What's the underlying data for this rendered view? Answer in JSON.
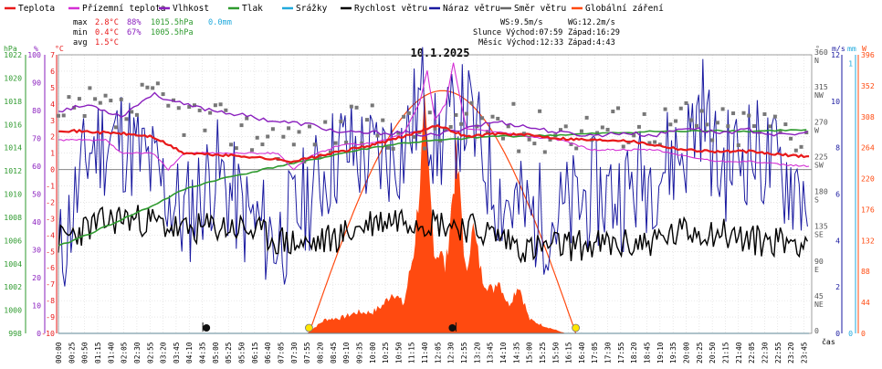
{
  "chart_data": {
    "type": "line",
    "title": "10.1.2025",
    "xlabel": "čas",
    "x_ticks": [
      "00:00",
      "00:25",
      "00:50",
      "01:15",
      "01:40",
      "02:05",
      "02:30",
      "02:55",
      "03:20",
      "03:45",
      "04:10",
      "04:35",
      "05:00",
      "05:25",
      "05:50",
      "06:15",
      "06:40",
      "07:05",
      "07:30",
      "07:55",
      "08:20",
      "08:45",
      "09:10",
      "09:35",
      "10:00",
      "10:25",
      "10:50",
      "11:15",
      "11:40",
      "12:05",
      "12:30",
      "12:55",
      "13:20",
      "13:45",
      "14:10",
      "14:35",
      "15:00",
      "15:25",
      "15:50",
      "16:15",
      "16:40",
      "17:05",
      "17:30",
      "17:55",
      "18:20",
      "18:45",
      "19:10",
      "19:35",
      "20:00",
      "20:25",
      "20:50",
      "21:15",
      "21:40",
      "22:05",
      "22:30",
      "22:55",
      "23:20",
      "23:45"
    ],
    "legend": [
      {
        "name": "Teplota",
        "color": "#e8191a"
      },
      {
        "name": "Přízemní teplota",
        "color": "#d42ed4"
      },
      {
        "name": "Vlhkost",
        "color": "#8a1fbe"
      },
      {
        "name": "Tlak",
        "color": "#2e9a2e"
      },
      {
        "name": "Srážky",
        "color": "#22aadd"
      },
      {
        "name": "Rychlost větru",
        "color": "#000000"
      },
      {
        "name": "Náraz větru",
        "color": "#1a1aa0"
      },
      {
        "name": "Směr větru",
        "color": "#666666"
      },
      {
        "name": "Globální záření",
        "color": "#ff4a10"
      }
    ],
    "stats": {
      "max": {
        "label": "max",
        "temp": "2.8°C",
        "hum": "88%",
        "press": "1015.5hPa",
        "rain": "0.0mm"
      },
      "min": {
        "label": "min",
        "temp": "0.4°C",
        "hum": "67%",
        "press": "1005.5hPa"
      },
      "avg": {
        "label": "avg",
        "temp": "1.5°C"
      }
    },
    "info": {
      "ws": "WS:9.5m/s",
      "wg": "WG:12.2m/s",
      "sun": "Slunce Východ:07:59",
      "sun_set": "Západ:16:29",
      "moon": "Měsíc Východ:12:33",
      "moon_set": "Západ:4:43"
    },
    "axes": {
      "hpa": {
        "label": "hPa",
        "ticks": [
          1022,
          1020,
          1018,
          1016,
          1014,
          1012,
          1010,
          1008,
          1006,
          1004,
          1002,
          1000,
          998
        ]
      },
      "pct": {
        "label": "%",
        "ticks": [
          100,
          90,
          80,
          70,
          60,
          50,
          40,
          30,
          20,
          10,
          0
        ]
      },
      "degc": {
        "label": "°C",
        "ticks": [
          7,
          6,
          5,
          4,
          3,
          2,
          1,
          0,
          -1,
          -2,
          -3,
          -4,
          -5,
          -6,
          -7,
          -8,
          -9,
          -10
        ]
      },
      "wind_dir": {
        "label": "°",
        "ticks": [
          "360",
          "N",
          "315",
          "NW",
          "270",
          "W",
          "225",
          "SW",
          "180",
          "S",
          "135",
          "SE",
          "90",
          "E",
          "45",
          "NE",
          "0"
        ]
      },
      "ms": {
        "label": "m/s",
        "ticks": [
          12,
          10,
          8,
          6,
          4,
          2,
          0
        ]
      },
      "mm": {
        "label": "mm",
        "ticks": [
          1,
          0
        ]
      },
      "wm2": {
        "label": "W",
        "ticks": [
          396,
          352,
          308,
          264,
          220,
          176,
          132,
          88,
          44,
          0
        ]
      }
    },
    "series": [
      {
        "name": "Teplota",
        "unit": "°C",
        "x": [
          "00:00",
          "01:00",
          "02:00",
          "03:00",
          "04:00",
          "05:00",
          "06:00",
          "07:00",
          "07:30",
          "08:00",
          "09:00",
          "10:00",
          "11:00",
          "12:00",
          "12:30",
          "13:00",
          "14:00",
          "15:00",
          "16:00",
          "17:00",
          "18:00",
          "19:00",
          "20:00",
          "21:00",
          "22:00",
          "23:00",
          "23:55"
        ],
        "values": [
          2.4,
          2.3,
          2.2,
          2.0,
          1.0,
          0.9,
          0.8,
          0.6,
          0.5,
          0.7,
          1.1,
          1.5,
          2.0,
          2.7,
          2.4,
          2.0,
          2.2,
          2.1,
          1.9,
          1.8,
          1.8,
          1.5,
          1.2,
          1.1,
          1.1,
          0.9,
          0.8
        ]
      },
      {
        "name": "Přízemní teplota",
        "unit": "°C",
        "x": [
          "00:00",
          "01:30",
          "02:00",
          "03:00",
          "03:30",
          "04:00",
          "05:00",
          "06:00",
          "07:00",
          "07:30",
          "08:00",
          "09:00",
          "10:00",
          "11:00",
          "11:30",
          "11:45",
          "12:00",
          "12:20",
          "12:35",
          "12:50",
          "13:00",
          "14:00",
          "15:00",
          "16:00",
          "17:00",
          "18:00",
          "19:00",
          "20:00",
          "21:00",
          "22:00",
          "23:00",
          "23:55"
        ],
        "values": [
          1.8,
          1.8,
          1.0,
          1.0,
          0.0,
          1.0,
          1.0,
          1.0,
          1.0,
          0.0,
          0.8,
          1.5,
          1.6,
          2.2,
          4.0,
          6.0,
          3.0,
          4.0,
          6.5,
          4.0,
          2.5,
          2.3,
          2.0,
          1.8,
          1.2,
          1.2,
          1.2,
          0.8,
          0.5,
          0.5,
          0.3,
          0.2
        ]
      },
      {
        "name": "Vlhkost",
        "unit": "%",
        "x": [
          "00:00",
          "01:00",
          "02:00",
          "03:00",
          "04:00",
          "05:00",
          "06:00",
          "07:00",
          "08:00",
          "09:00",
          "10:00",
          "11:00",
          "12:00",
          "13:00",
          "14:00",
          "15:00",
          "16:00",
          "17:00",
          "18:00",
          "19:00",
          "20:00",
          "21:00",
          "22:00",
          "23:00",
          "23:55"
        ],
        "values": [
          80,
          82,
          78,
          86,
          82,
          80,
          78,
          76,
          75,
          72,
          72,
          72,
          71,
          74,
          76,
          74,
          72,
          71,
          72,
          71,
          74,
          72,
          73,
          71,
          72
        ]
      },
      {
        "name": "Tlak",
        "unit": "hPa",
        "x": [
          "00:00",
          "01:00",
          "02:00",
          "03:00",
          "04:00",
          "05:00",
          "06:00",
          "07:00",
          "08:00",
          "09:00",
          "10:00",
          "11:00",
          "12:00",
          "13:00",
          "14:00",
          "15:00",
          "16:00",
          "17:00",
          "18:00",
          "19:00",
          "20:00",
          "21:00",
          "22:00",
          "23:00",
          "23:55"
        ],
        "values": [
          1005.5,
          1006.6,
          1007.8,
          1009.0,
          1010.4,
          1011.2,
          1011.8,
          1012.4,
          1012.9,
          1013.5,
          1014.0,
          1014.4,
          1014.6,
          1014.8,
          1015.0,
          1015.0,
          1015.1,
          1015.2,
          1015.3,
          1015.4,
          1015.4,
          1015.5,
          1015.4,
          1015.5,
          1015.5
        ]
      },
      {
        "name": "Srážky",
        "unit": "mm",
        "x": [
          "00:00",
          "23:55"
        ],
        "values": [
          0.0,
          0.0
        ]
      },
      {
        "name": "Rychlost větru",
        "unit": "m/s",
        "x": [
          "00:00",
          "01:00",
          "02:00",
          "03:00",
          "04:00",
          "05:00",
          "06:00",
          "07:00",
          "08:00",
          "09:00",
          "10:00",
          "11:00",
          "12:00",
          "13:00",
          "14:00",
          "15:00",
          "16:00",
          "17:00",
          "18:00",
          "19:00",
          "20:00",
          "21:00",
          "22:00",
          "23:00",
          "23:55"
        ],
        "values": [
          4.0,
          4.6,
          5.0,
          4.8,
          4.4,
          4.6,
          4.5,
          4.0,
          3.8,
          4.2,
          4.8,
          5.0,
          4.8,
          4.6,
          4.2,
          3.6,
          3.8,
          3.8,
          3.8,
          4.0,
          4.4,
          4.4,
          4.0,
          4.0,
          4.0
        ]
      },
      {
        "name": "Náraz větru",
        "unit": "m/s",
        "x": [
          "00:00",
          "01:00",
          "02:00",
          "03:00",
          "04:00",
          "05:00",
          "06:00",
          "07:00",
          "08:00",
          "09:00",
          "10:00",
          "11:00",
          "11:40",
          "12:00",
          "13:00",
          "14:00",
          "15:00",
          "16:00",
          "17:00",
          "18:00",
          "19:00",
          "20:00",
          "20:30",
          "21:00",
          "22:00",
          "23:00",
          "23:55"
        ],
        "values": [
          3.0,
          8.0,
          8.5,
          7.0,
          5.0,
          7.0,
          5.0,
          4.0,
          6.0,
          8.0,
          7.5,
          8.0,
          10.5,
          8.0,
          9.5,
          6.0,
          5.0,
          5.0,
          6.0,
          6.0,
          7.0,
          8.0,
          10.0,
          7.0,
          8.0,
          7.0,
          6.0
        ]
      },
      {
        "name": "Směr větru",
        "unit": "°",
        "x": [
          "00:00",
          "01:00",
          "02:00",
          "03:00",
          "04:00",
          "05:00",
          "06:00",
          "07:00",
          "08:00",
          "09:00",
          "10:00",
          "11:00",
          "12:00",
          "13:00",
          "14:00",
          "15:00",
          "16:00",
          "17:00",
          "18:00",
          "19:00",
          "20:00",
          "21:00",
          "22:00",
          "23:00",
          "23:55"
        ],
        "values": [
          270,
          290,
          280,
          300,
          285,
          270,
          260,
          255,
          245,
          260,
          270,
          265,
          260,
          270,
          275,
          260,
          265,
          265,
          270,
          270,
          275,
          265,
          270,
          265,
          260
        ]
      },
      {
        "name": "Globální záření",
        "unit": "W/m²",
        "x": [
          "07:55",
          "08:30",
          "09:00",
          "09:30",
          "10:00",
          "10:20",
          "10:40",
          "11:00",
          "11:20",
          "11:40",
          "11:50",
          "12:00",
          "12:10",
          "12:20",
          "12:40",
          "12:50",
          "13:00",
          "13:10",
          "13:30",
          "13:50",
          "14:00",
          "14:20",
          "14:40",
          "15:00",
          "15:30",
          "15:50",
          "16:10"
        ],
        "values": [
          0,
          20,
          22,
          30,
          30,
          40,
          60,
          40,
          120,
          300,
          200,
          110,
          120,
          90,
          250,
          180,
          70,
          160,
          80,
          60,
          80,
          40,
          70,
          20,
          10,
          5,
          0
        ]
      }
    ],
    "ylim": {
      "temp": [
        -10,
        7
      ],
      "pct": [
        0,
        100
      ],
      "hpa": [
        998,
        1022
      ],
      "ms": [
        0,
        12
      ],
      "wm2": [
        0,
        396
      ],
      "dir": [
        0,
        360
      ]
    }
  }
}
